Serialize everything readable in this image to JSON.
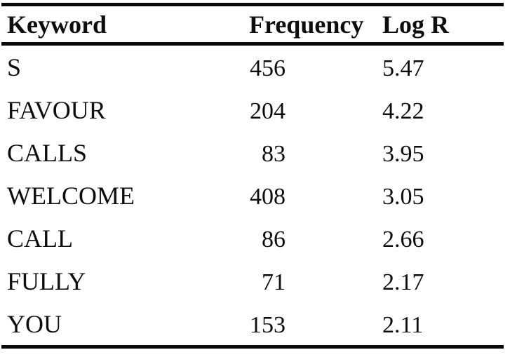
{
  "table": {
    "columns": [
      {
        "label": "Keyword"
      },
      {
        "label": "Frequency"
      },
      {
        "label": "Log R"
      }
    ],
    "rows": [
      {
        "keyword": "S",
        "frequency": "456",
        "log_r": "5.47"
      },
      {
        "keyword": "FAVOUR",
        "frequency": "204",
        "log_r": "4.22"
      },
      {
        "keyword": "CALLS",
        "frequency": "83",
        "log_r": "3.95"
      },
      {
        "keyword": "WELCOME",
        "frequency": "408",
        "log_r": "3.05"
      },
      {
        "keyword": "CALL",
        "frequency": "86",
        "log_r": "2.66"
      },
      {
        "keyword": "FULLY",
        "frequency": "71",
        "log_r": "2.17"
      },
      {
        "keyword": "YOU",
        "frequency": "153",
        "log_r": "2.11"
      }
    ]
  },
  "colors": {
    "text": "#0d0d0d",
    "rule": "#0a0a0a",
    "background": "#ffffff"
  }
}
